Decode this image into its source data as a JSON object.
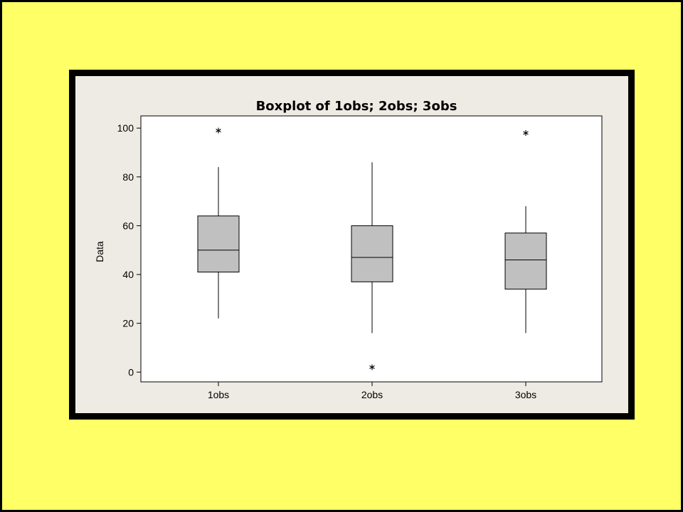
{
  "page": {
    "background_color": "#ffff66",
    "panel_background": "#eeebe4",
    "plot_background": "#ffffff",
    "box_fill": "#c0c0c0",
    "outlier_icon": "asterisk-icon"
  },
  "chart_data": {
    "type": "boxplot",
    "title": "Boxplot of 1obs; 2obs; 3obs",
    "xlabel": "",
    "ylabel": "Data",
    "ylim": [
      -4,
      105
    ],
    "yticks": [
      0,
      20,
      40,
      60,
      80,
      100
    ],
    "grid": false,
    "legend": "none",
    "categories": [
      "1obs",
      "2obs",
      "3obs"
    ],
    "boxes": [
      {
        "category": "1obs",
        "whisker_low": 22,
        "q1": 41,
        "median": 50,
        "q3": 64,
        "whisker_high": 84,
        "outliers": [
          99
        ]
      },
      {
        "category": "2obs",
        "whisker_low": 16,
        "q1": 37,
        "median": 47,
        "q3": 60,
        "whisker_high": 86,
        "outliers": [
          2
        ]
      },
      {
        "category": "3obs",
        "whisker_low": 16,
        "q1": 34,
        "median": 46,
        "q3": 57,
        "whisker_high": 68,
        "outliers": [
          98
        ]
      }
    ]
  }
}
